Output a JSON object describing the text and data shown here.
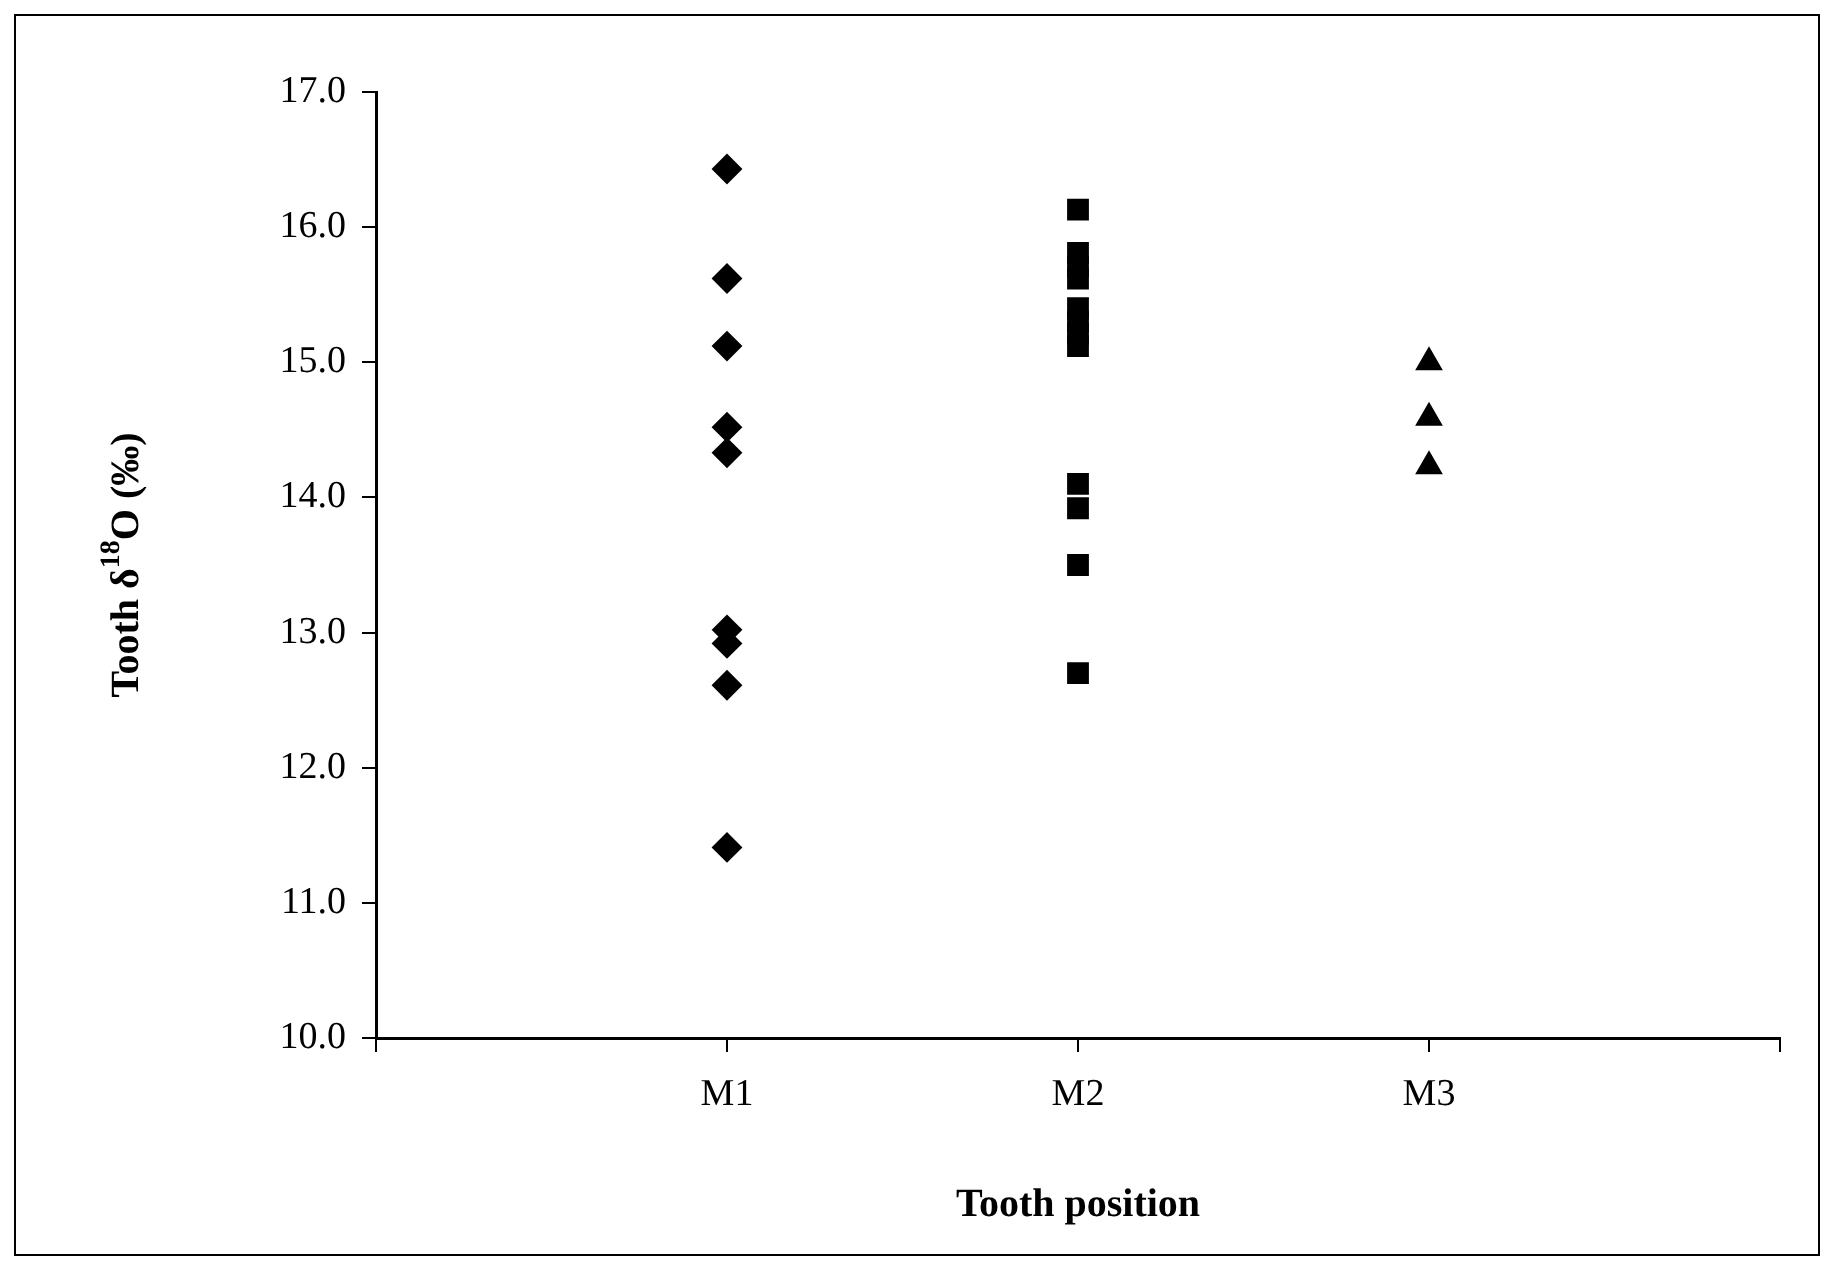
{
  "chart_data": {
    "type": "scatter",
    "xlabel": "Tooth position",
    "ylabel": "Tooth δ$^{18}$O (‰)",
    "categories": [
      "M1",
      "M2",
      "M3"
    ],
    "series": [
      {
        "color": "#000000",
        "marker": "diamond",
        "x": [
          "M1",
          "M1",
          "M1",
          "M1",
          "M1",
          "M1",
          "M1",
          "M1",
          "M1"
        ],
        "values": [
          16.43,
          15.62,
          15.12,
          14.52,
          14.33,
          13.02,
          12.92,
          12.61,
          11.41
        ]
      },
      {
        "color": "#000000",
        "marker": "square",
        "x": [
          "M2",
          "M2",
          "M2",
          "M2",
          "M2",
          "M2",
          "M2",
          "M2",
          "M2",
          "M2",
          "M2",
          "M2"
        ],
        "values": [
          16.13,
          15.81,
          15.71,
          15.62,
          15.4,
          15.3,
          15.21,
          15.12,
          14.1,
          13.92,
          13.5,
          12.7
        ]
      },
      {
        "color": "#000000",
        "marker": "triangle",
        "x": [
          "M3",
          "M3",
          "M3"
        ],
        "values": [
          15.0,
          14.59,
          14.23
        ]
      }
    ],
    "ylim": [
      10,
      17
    ],
    "yticks": [
      {
        "value": 10,
        "label": "10.0"
      },
      {
        "value": 11,
        "label": "11.0"
      },
      {
        "value": 12,
        "label": "12.0"
      },
      {
        "value": 13,
        "label": "13.0"
      },
      {
        "value": 14,
        "label": "14.0"
      },
      {
        "value": 15,
        "label": "15.0"
      },
      {
        "value": 16,
        "label": "16.0"
      },
      {
        "value": 17,
        "label": "17.0"
      }
    ],
    "grid": false,
    "legend": false
  }
}
